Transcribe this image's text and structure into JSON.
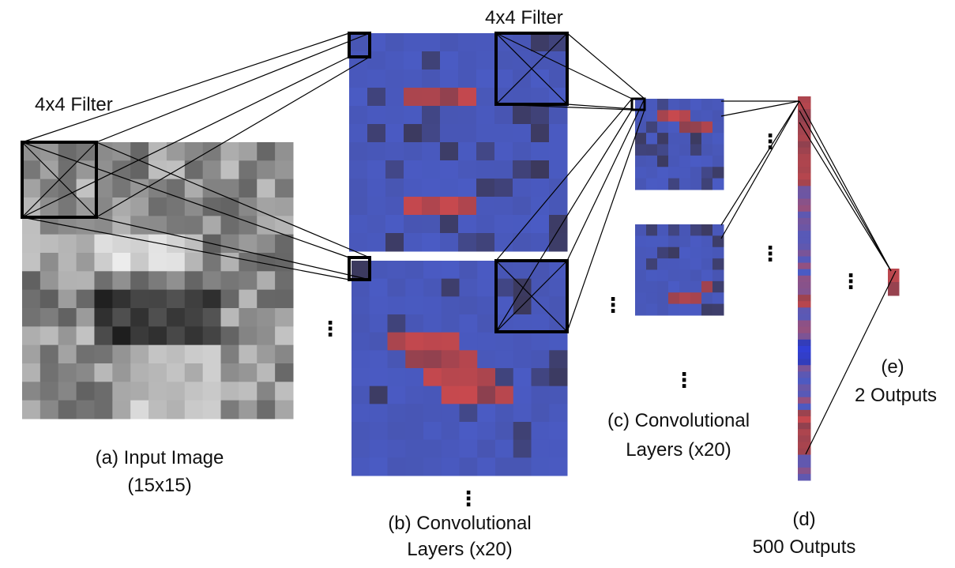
{
  "labels": {
    "filter_a": "4x4 Filter",
    "filter_b": "4x4 Filter",
    "input_title": "(a) Input Image",
    "input_size": "(15x15)",
    "conv_b_title": "(b) Convolutional",
    "conv_b_count": "Layers (x20)",
    "conv_c_title": "(c) Convolutional",
    "conv_c_count": "Layers (x20)",
    "fc_d_title": "(d)",
    "fc_d_count": "500 Outputs",
    "out_e_title": "(e)",
    "out_e_count": "2 Outputs"
  },
  "ellipsis": "⋮",
  "colors": {
    "background": "#ffffff",
    "line": "#000000",
    "feature_blue": "#4a5bc4",
    "feature_red": "#c9494e",
    "grayscale_base": "#8a8a8a"
  }
}
